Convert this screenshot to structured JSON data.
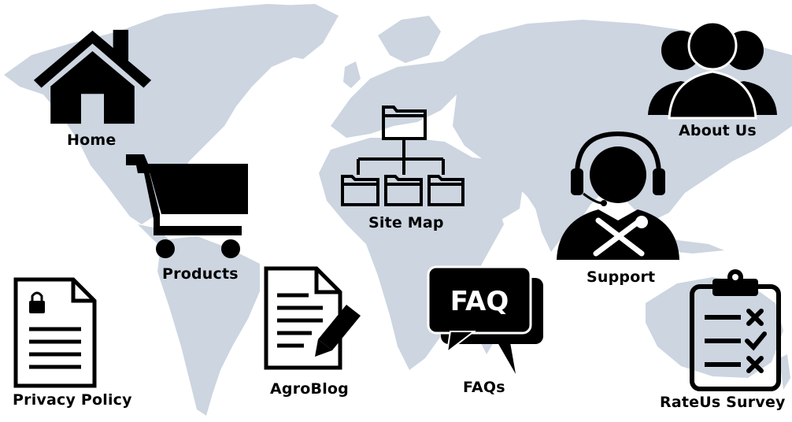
{
  "colors": {
    "map": "#ccd5e0",
    "icon": "#000000",
    "background": "#ffffff"
  },
  "nav": {
    "home": {
      "label": "Home",
      "icon": "house-icon"
    },
    "products": {
      "label": "Products",
      "icon": "shopping-cart-icon"
    },
    "site_map": {
      "label": "Site Map",
      "icon": "folder-tree-icon"
    },
    "about_us": {
      "label": "About Us",
      "icon": "people-icon"
    },
    "support": {
      "label": "Support",
      "icon": "headset-support-icon"
    },
    "privacy_policy": {
      "label": "Privacy Policy",
      "icon": "locked-document-icon"
    },
    "agroblog": {
      "label": "AgroBlog",
      "icon": "document-pencil-icon"
    },
    "faqs": {
      "label": "FAQs",
      "icon": "faq-bubble-icon",
      "badge": "FAQ"
    },
    "rateus_survey": {
      "label": "RateUs Survey",
      "icon": "clipboard-checklist-icon"
    }
  }
}
